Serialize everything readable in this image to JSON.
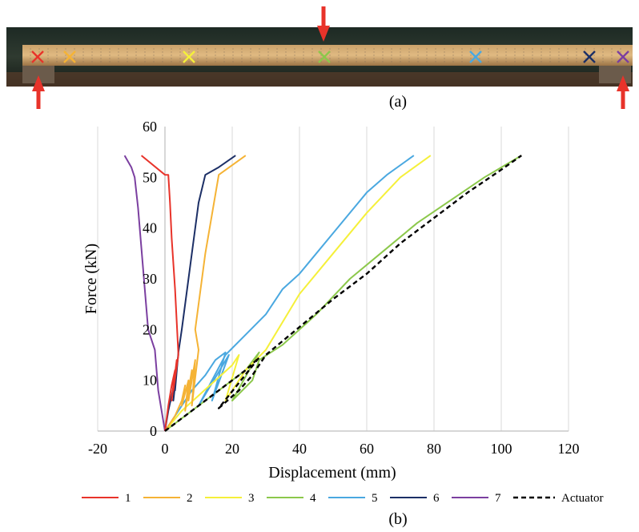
{
  "captions": {
    "a": "(a)",
    "b": "(b)"
  },
  "photo": {
    "description_markers": [
      {
        "label": "1",
        "color": "#e8332a"
      },
      {
        "label": "2",
        "color": "#f5b335"
      },
      {
        "label": "3",
        "color": "#f5f03a"
      },
      {
        "label": "4",
        "color": "#8cc84b"
      },
      {
        "label": "5",
        "color": "#4aa8e0"
      },
      {
        "label": "6",
        "color": "#1c2f66"
      },
      {
        "label": "7",
        "color": "#7b3fa0"
      }
    ],
    "arrow_color": "#e8332a"
  },
  "chart_data": {
    "type": "line",
    "xlabel": "Displacement (mm)",
    "ylabel": "Force (kN)",
    "xlim": [
      -20,
      120
    ],
    "ylim": [
      0,
      60
    ],
    "xticks": [
      -20,
      0,
      20,
      40,
      60,
      80,
      100,
      120
    ],
    "yticks": [
      0,
      10,
      20,
      30,
      40,
      50,
      60
    ],
    "grid": "vertical-major",
    "legend_position": "bottom",
    "series": [
      {
        "name": "1",
        "color": "#e8332a",
        "dash": "solid",
        "x": [
          0,
          1,
          2,
          3,
          2,
          3.5,
          2.5,
          4,
          3,
          2,
          1.5,
          1,
          0,
          -7
        ],
        "y": [
          0,
          5,
          9,
          12,
          6,
          14,
          8,
          15,
          28,
          38,
          45,
          50.5,
          50.5,
          54.3
        ]
      },
      {
        "name": "2",
        "color": "#f5b335",
        "dash": "solid",
        "x": [
          0,
          3,
          5,
          6,
          5,
          7,
          6,
          8,
          7,
          9,
          8,
          10,
          9,
          12,
          16,
          24
        ],
        "y": [
          0,
          3,
          6,
          9,
          5,
          10,
          4,
          12,
          6,
          14,
          5,
          16,
          20,
          35,
          50.5,
          54.3
        ]
      },
      {
        "name": "3",
        "color": "#f5f03a",
        "dash": "solid",
        "x": [
          0,
          5,
          10,
          15,
          20,
          22,
          18,
          24,
          30,
          40,
          50,
          60,
          70,
          79
        ],
        "y": [
          0,
          4,
          7,
          10,
          13,
          15,
          6,
          12,
          16,
          27,
          35,
          43,
          50,
          54.3
        ]
      },
      {
        "name": "4",
        "color": "#8cc84b",
        "dash": "solid",
        "x": [
          0,
          6,
          12,
          18,
          24,
          28,
          20,
          26,
          28,
          35,
          45,
          55,
          65,
          75,
          85,
          95,
          106
        ],
        "y": [
          0,
          3,
          6,
          9,
          12,
          15.5,
          6,
          10,
          14,
          17,
          23,
          30,
          35.5,
          41,
          45.5,
          50,
          54.3
        ]
      },
      {
        "name": "5",
        "color": "#4aa8e0",
        "dash": "solid",
        "x": [
          0,
          4,
          8,
          12,
          15,
          18,
          14,
          19,
          10,
          18,
          24,
          30,
          35,
          40,
          50,
          60,
          66,
          74
        ],
        "y": [
          0,
          4,
          8,
          11,
          14,
          15.5,
          6,
          15,
          5,
          15,
          19,
          23,
          28,
          31,
          39,
          47,
          50.5,
          54.3
        ]
      },
      {
        "name": "6",
        "color": "#1c2f66",
        "dash": "solid",
        "x": [
          0,
          1,
          2,
          3,
          2.5,
          3.5,
          3,
          4,
          5,
          6,
          8,
          10,
          12,
          16,
          21
        ],
        "y": [
          0,
          4,
          7,
          10,
          6,
          12,
          8,
          15.5,
          20,
          25,
          35,
          45,
          50.5,
          52,
          54.3
        ]
      },
      {
        "name": "7",
        "color": "#7b3fa0",
        "dash": "solid",
        "x": [
          0,
          -1,
          -2,
          -3,
          -5,
          -6,
          -7,
          -8,
          -9,
          -10,
          -12
        ],
        "y": [
          0,
          4,
          8,
          16,
          20,
          28,
          36,
          44,
          50,
          52,
          54.3
        ]
      },
      {
        "name": "Actuator",
        "color": "#000000",
        "dash": "dashed",
        "x": [
          0,
          6,
          12,
          18,
          24,
          28,
          16,
          22,
          26,
          30,
          40,
          50,
          60,
          70,
          80,
          90,
          100,
          106
        ],
        "y": [
          0,
          3,
          6,
          9,
          12,
          14.5,
          4.5,
          8,
          11,
          15,
          20.5,
          26,
          31,
          37,
          42,
          47,
          51.5,
          54.3
        ]
      }
    ]
  }
}
